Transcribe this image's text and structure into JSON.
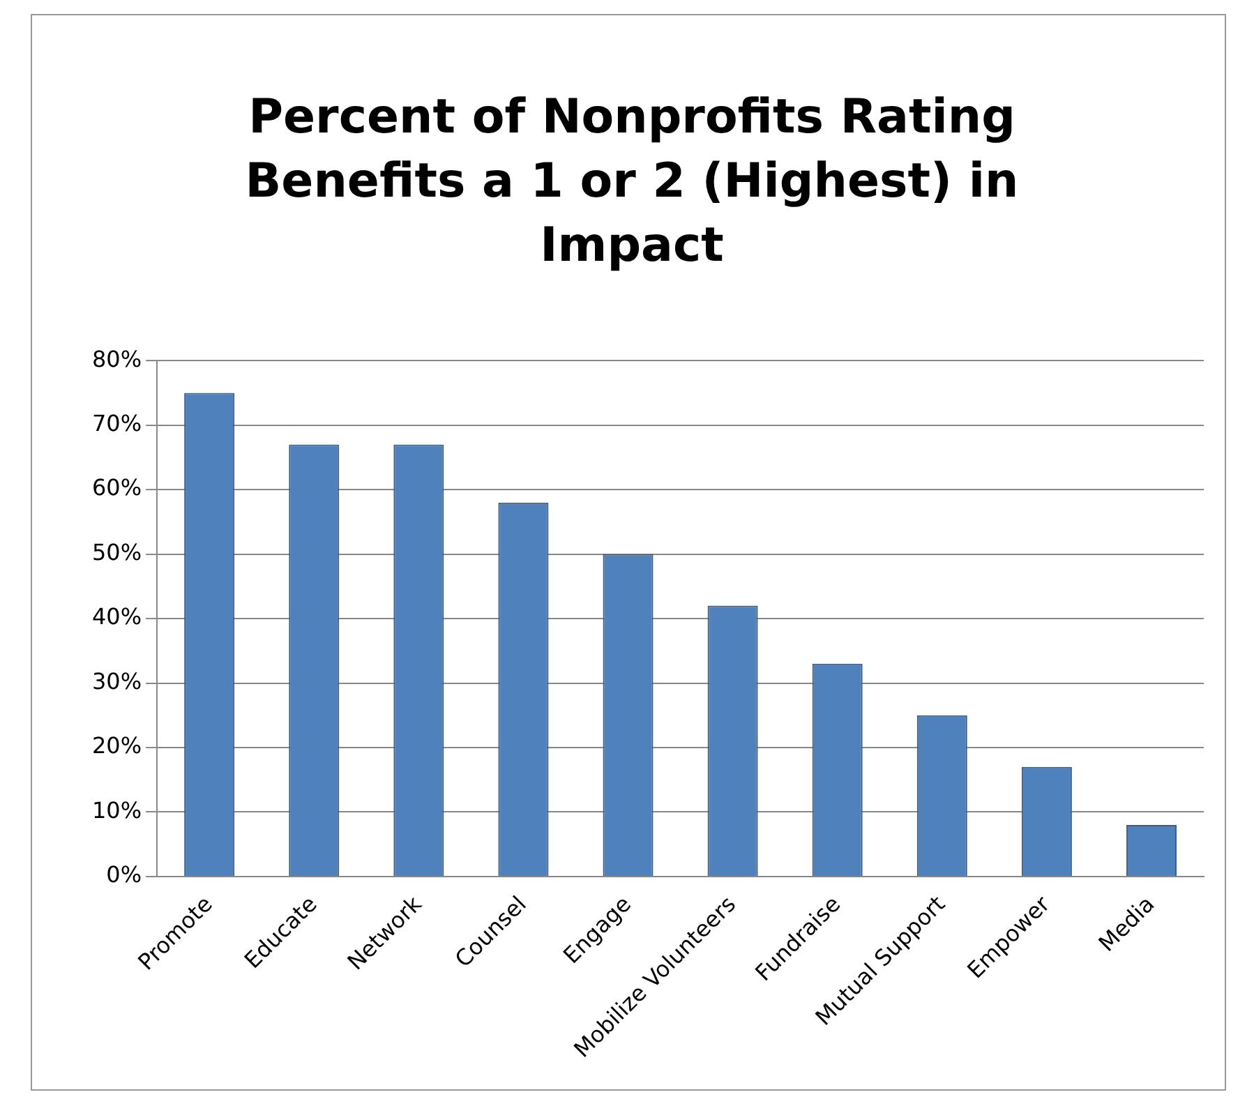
{
  "chart_data": {
    "type": "bar",
    "title": "Percent of Nonprofits Rating Benefits a 1 or 2 (Highest) in Impact",
    "categories": [
      "Promote",
      "Educate",
      "Network",
      "Counsel",
      "Engage",
      "Mobilize Volunteers",
      "Fundraise",
      "Mutual Support",
      "Empower",
      "Media"
    ],
    "values": [
      75,
      67,
      67,
      58,
      50,
      42,
      33,
      25,
      17,
      8
    ],
    "color": "#4f81bd",
    "ylim": [
      0,
      80
    ],
    "yticks": [
      {
        "value": 0,
        "label": "0%"
      },
      {
        "value": 10,
        "label": "10%"
      },
      {
        "value": 20,
        "label": "20%"
      },
      {
        "value": 30,
        "label": "30%"
      },
      {
        "value": 40,
        "label": "40%"
      },
      {
        "value": 50,
        "label": "50%"
      },
      {
        "value": 60,
        "label": "60%"
      },
      {
        "value": 70,
        "label": "70%"
      },
      {
        "value": 80,
        "label": "80%"
      }
    ],
    "grid": "y",
    "legend": false
  }
}
